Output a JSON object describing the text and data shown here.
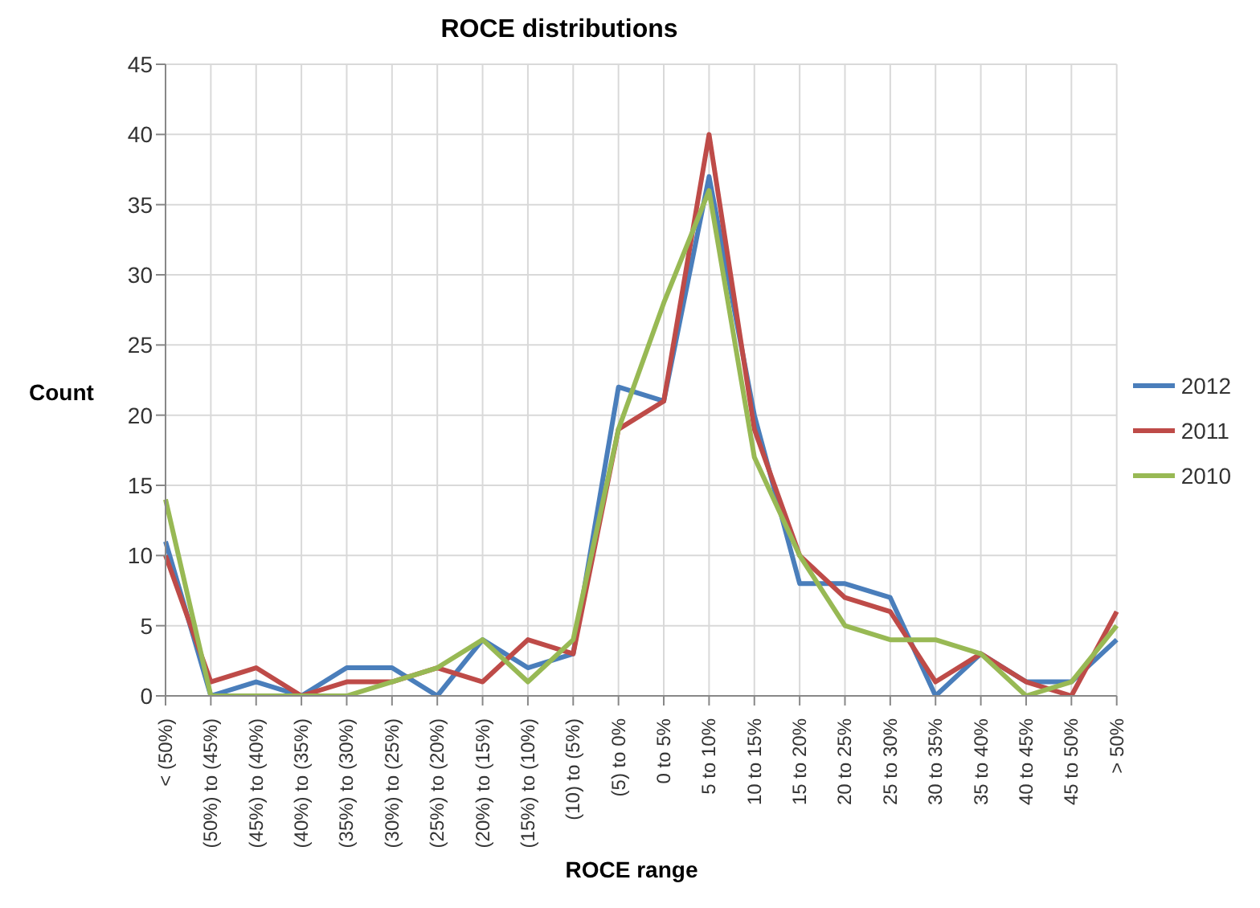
{
  "chart_data": {
    "type": "line",
    "title": "ROCE distributions",
    "xlabel": "ROCE range",
    "ylabel": "Count",
    "categories": [
      "< (50%)",
      "(50%) to (45%)",
      "(45%) to (40%)",
      "(40%) to (35%)",
      "(35%) to (30%)",
      "(30%) to (25%)",
      "(25%) to (20%)",
      "(20%) to (15%)",
      "(15%) to (10%)",
      "(10) to (5%)",
      "(5) to 0%",
      "0 to 5%",
      "5 to 10%",
      "10 to 15%",
      "15 to 20%",
      "20 to 25%",
      "25 to 30%",
      "30 to 35%",
      "35 to 40%",
      "40 to 45%",
      "45 to 50%",
      "> 50%"
    ],
    "series": [
      {
        "name": "2012",
        "color": "#4a7ebb",
        "values": [
          11,
          0,
          1,
          0,
          2,
          2,
          0,
          4,
          2,
          3,
          22,
          21,
          37,
          20,
          8,
          8,
          7,
          0,
          3,
          1,
          1,
          4
        ]
      },
      {
        "name": "2011",
        "color": "#be4b48",
        "values": [
          10,
          1,
          2,
          0,
          1,
          1,
          2,
          1,
          4,
          3,
          19,
          21,
          40,
          19,
          10,
          7,
          6,
          1,
          3,
          1,
          0,
          6
        ]
      },
      {
        "name": "2010",
        "color": "#98b954",
        "values": [
          14,
          0,
          0,
          0,
          0,
          1,
          2,
          4,
          1,
          4,
          19,
          28,
          36,
          17,
          10,
          5,
          4,
          4,
          3,
          0,
          1,
          5
        ]
      }
    ],
    "ylim": [
      0,
      45
    ],
    "yticks": [
      0,
      5,
      10,
      15,
      20,
      25,
      30,
      35,
      40,
      45
    ],
    "grid": true,
    "legend": "right",
    "marker": "none",
    "line_style": "solid"
  }
}
